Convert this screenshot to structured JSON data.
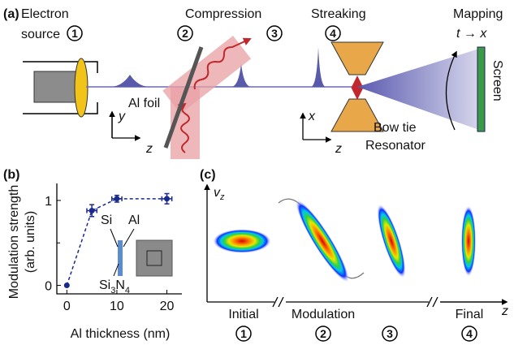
{
  "panel_a": {
    "label": "(a)",
    "electron_source": [
      "Electron",
      "source"
    ],
    "compression": "Compression",
    "streaking": "Streaking",
    "mapping": "Mapping",
    "mapping_arrow": [
      "t",
      "→",
      "x"
    ],
    "screen": "Screen",
    "al_foil": "Al foil",
    "axes1": [
      "y",
      "z"
    ],
    "axes2": [
      "x",
      "z"
    ],
    "bow_tie": [
      "Bow tie",
      "Resonator"
    ],
    "steps": [
      "1",
      "2",
      "3",
      "4"
    ]
  },
  "chart_data": {
    "type": "scatter",
    "panel_label": "(b)",
    "y_label": [
      "Modulation strength",
      "(arb. units)"
    ],
    "x_label": "Al thickness (nm)",
    "x": [
      0,
      5,
      10,
      20
    ],
    "values": [
      0,
      0.88,
      1.02,
      1.02
    ],
    "yerr": [
      0,
      0.07,
      0.04,
      0.06
    ],
    "xerr": [
      0,
      1,
      1,
      1
    ],
    "color": "#1a2a8c",
    "xlim": [
      -2,
      23
    ],
    "ylim": [
      -0.1,
      1.2
    ],
    "xticks": [
      0,
      10,
      20
    ],
    "yticks": [
      0,
      1
    ],
    "yminorticks": [
      0.5
    ],
    "inset": {
      "si": "Si",
      "al": "Al",
      "si3n4": [
        "Si",
        "3",
        "N",
        "4"
      ]
    }
  },
  "panel_c": {
    "label": "(c)",
    "v_axis": [
      "v",
      "z"
    ],
    "z_axis": "z",
    "stages": [
      "Initial",
      "Modulation",
      "Final"
    ],
    "steps": [
      "1",
      "2",
      "3",
      "4"
    ]
  }
}
